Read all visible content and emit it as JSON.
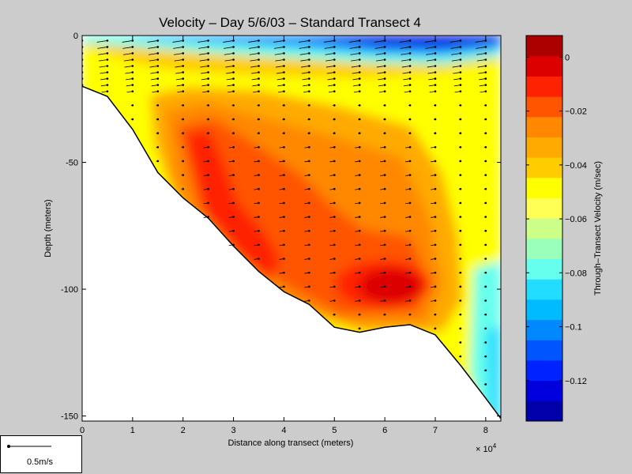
{
  "chart_data": {
    "type": "heatmap",
    "title": "Velocity – Day 5/6/03 – Standard Transect 4",
    "xlabel": "Distance along transect (meters)",
    "ylabel": "Depth (meters)",
    "x_multiplier_label": "× 10",
    "x_multiplier_exp": "4",
    "xlim": [
      0,
      8.3
    ],
    "ylim": [
      -152,
      0
    ],
    "x_ticks": [
      0,
      1,
      2,
      3,
      4,
      5,
      6,
      7,
      8
    ],
    "y_ticks": [
      0,
      -50,
      -100,
      -150
    ],
    "colorbar": {
      "label": "Through–Transect Velocity (m/sec)",
      "range": [
        -0.135,
        0.008
      ],
      "ticks": [
        0,
        -0.02,
        -0.04,
        -0.06,
        -0.08,
        -0.1,
        -0.12
      ],
      "tick_labels": [
        "0",
        "−0.02",
        "−0.04",
        "−0.06",
        "−0.08",
        "−0.1",
        "−0.12"
      ],
      "levels": [
        "#0000aa",
        "#0000dd",
        "#0022ff",
        "#0055ff",
        "#0088ff",
        "#00bbff",
        "#22ddff",
        "#66ffee",
        "#99ffbb",
        "#ccff88",
        "#ffff55",
        "#ffff00",
        "#ffcc00",
        "#ffaa00",
        "#ff8800",
        "#ff5500",
        "#ff2200",
        "#dd0000",
        "#aa0000"
      ]
    },
    "bottom_profile": [
      [
        0,
        -20
      ],
      [
        0.5,
        -24
      ],
      [
        1,
        -37
      ],
      [
        1.5,
        -54
      ],
      [
        2,
        -64
      ],
      [
        2.5,
        -72
      ],
      [
        3,
        -83
      ],
      [
        3.5,
        -93
      ],
      [
        4,
        -101
      ],
      [
        4.5,
        -106
      ],
      [
        5,
        -115
      ],
      [
        5.5,
        -117
      ],
      [
        6,
        -115
      ],
      [
        6.5,
        -114
      ],
      [
        7,
        -118
      ],
      [
        7.5,
        -130
      ],
      [
        8,
        -143
      ],
      [
        8.3,
        -151
      ]
    ],
    "vector_scale_label": "0.5m/s"
  }
}
